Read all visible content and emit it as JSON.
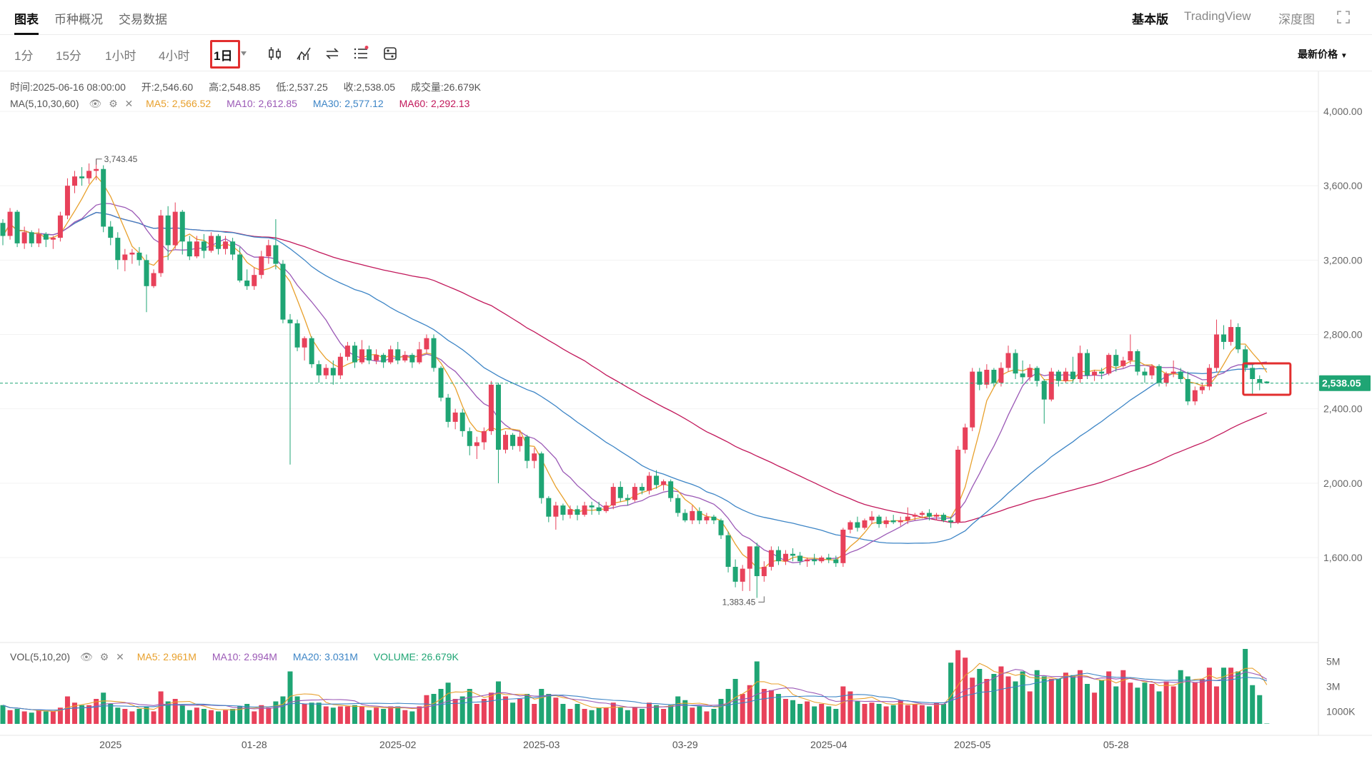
{
  "nav": {
    "tabs": [
      {
        "label": "图表",
        "active": true
      },
      {
        "label": "币种概况",
        "active": false
      },
      {
        "label": "交易数据",
        "active": false
      }
    ],
    "right_tabs": [
      {
        "label": "基本版",
        "active": true
      },
      {
        "label": "TradingView",
        "active": false
      },
      {
        "label": "深度图",
        "active": false
      }
    ],
    "expand_icon": "fullscreen-icon"
  },
  "toolbar": {
    "timeframes": [
      {
        "label": "1分",
        "active": false
      },
      {
        "label": "15分",
        "active": false
      },
      {
        "label": "1小时",
        "active": false
      },
      {
        "label": "4小时",
        "active": false
      },
      {
        "label": "1日",
        "active": true
      }
    ],
    "tools": [
      "candle-type-icon",
      "indicator-icon",
      "swap-icon",
      "list-settings-icon",
      "chart-settings-icon"
    ],
    "price_select": "最新价格"
  },
  "ohlc": {
    "time_label": "时间:",
    "time": "2025-06-16 08:00:00",
    "open_label": "开:",
    "open": "2,546.60",
    "high_label": "高:",
    "high": "2,548.85",
    "low_label": "低:",
    "low": "2,537.25",
    "close_label": "收:",
    "close": "2,538.05",
    "vol_label": "成交量:",
    "vol": "26.679K"
  },
  "ma_legend": {
    "name": "MA(5,10,30,60)",
    "ma5": "MA5: 2,566.52",
    "ma10": "MA10: 2,612.85",
    "ma30": "MA30: 2,577.12",
    "ma60": "MA60: 2,292.13"
  },
  "vol_legend": {
    "name": "VOL(5,10,20)",
    "ma5": "MA5: 2.961M",
    "ma10": "MA10: 2.994M",
    "ma20": "MA20: 3.031M",
    "volume": "VOLUME: 26.679K"
  },
  "colors": {
    "up": "#e8415a",
    "down": "#1fa574",
    "ma5": "#e8a02c",
    "ma10": "#9b59b6",
    "ma30": "#3d85c6",
    "ma60": "#c2185b",
    "current_price": "#1fa574",
    "highlight": "#e22e2e"
  },
  "chart_data": {
    "type": "candlestick",
    "y_axis": {
      "labels": [
        "4,000.00",
        "3,600.00",
        "3,200.00",
        "2,800.00",
        "2,400.00",
        "2,000.00",
        "1,600.00"
      ],
      "values": [
        4000,
        3600,
        3200,
        2800,
        2400,
        2000,
        1600
      ]
    },
    "ylim": [
      1200,
      4200
    ],
    "x_axis": {
      "labels": [
        "2025",
        "01-28",
        "2025-02",
        "2025-03",
        "03-29",
        "2025-04",
        "2025-05",
        "05-28"
      ],
      "positions_index": [
        15,
        35,
        55,
        75,
        95,
        115,
        135,
        155
      ]
    },
    "current_price": {
      "label": "2,538.05",
      "value": 2538.05
    },
    "annotations": [
      {
        "label": "3,743.45",
        "value": 3743.45,
        "index": 13
      },
      {
        "label": "1,383.45",
        "value": 1383.45,
        "index": 106
      }
    ],
    "vol_axis": {
      "labels": [
        "5M",
        "3M",
        "1000K"
      ],
      "values": [
        5000000,
        3000000,
        1000000
      ]
    },
    "candles": [
      [
        3400,
        3420,
        3280,
        3330
      ],
      [
        3330,
        3480,
        3310,
        3460
      ],
      [
        3460,
        3470,
        3270,
        3290
      ],
      [
        3290,
        3380,
        3260,
        3350
      ],
      [
        3350,
        3360,
        3270,
        3290
      ],
      [
        3290,
        3370,
        3270,
        3340
      ],
      [
        3340,
        3350,
        3270,
        3310
      ],
      [
        3310,
        3330,
        3260,
        3320
      ],
      [
        3320,
        3460,
        3300,
        3440
      ],
      [
        3440,
        3640,
        3420,
        3600
      ],
      [
        3600,
        3680,
        3560,
        3650
      ],
      [
        3650,
        3700,
        3600,
        3640
      ],
      [
        3640,
        3720,
        3610,
        3680
      ],
      [
        3680,
        3743,
        3630,
        3690
      ],
      [
        3690,
        3710,
        3350,
        3380
      ],
      [
        3380,
        3410,
        3280,
        3320
      ],
      [
        3320,
        3350,
        3150,
        3200
      ],
      [
        3200,
        3260,
        3140,
        3230
      ],
      [
        3230,
        3260,
        3180,
        3240
      ],
      [
        3240,
        3270,
        3170,
        3200
      ],
      [
        3200,
        3230,
        2920,
        3060
      ],
      [
        3060,
        3150,
        3050,
        3130
      ],
      [
        3130,
        3470,
        3110,
        3440
      ],
      [
        3440,
        3490,
        3200,
        3280
      ],
      [
        3280,
        3510,
        3260,
        3460
      ],
      [
        3460,
        3470,
        3230,
        3300
      ],
      [
        3300,
        3330,
        3200,
        3220
      ],
      [
        3220,
        3330,
        3210,
        3300
      ],
      [
        3300,
        3340,
        3210,
        3250
      ],
      [
        3250,
        3350,
        3240,
        3330
      ],
      [
        3330,
        3340,
        3230,
        3260
      ],
      [
        3260,
        3330,
        3230,
        3300
      ],
      [
        3300,
        3320,
        3200,
        3230
      ],
      [
        3230,
        3270,
        3080,
        3090
      ],
      [
        3090,
        3150,
        3040,
        3060
      ],
      [
        3060,
        3160,
        3040,
        3120
      ],
      [
        3120,
        3250,
        3100,
        3220
      ],
      [
        3220,
        3310,
        3180,
        3280
      ],
      [
        3280,
        3420,
        3150,
        3180
      ],
      [
        3180,
        3200,
        2860,
        2880
      ],
      [
        2880,
        2910,
        2100,
        2860
      ],
      [
        2860,
        2880,
        2710,
        2730
      ],
      [
        2730,
        2790,
        2660,
        2780
      ],
      [
        2780,
        2790,
        2620,
        2640
      ],
      [
        2640,
        2660,
        2540,
        2580
      ],
      [
        2580,
        2640,
        2560,
        2620
      ],
      [
        2620,
        2660,
        2530,
        2580
      ],
      [
        2580,
        2700,
        2560,
        2680
      ],
      [
        2680,
        2760,
        2660,
        2740
      ],
      [
        2740,
        2760,
        2620,
        2650
      ],
      [
        2650,
        2770,
        2640,
        2720
      ],
      [
        2720,
        2740,
        2640,
        2660
      ],
      [
        2660,
        2720,
        2640,
        2690
      ],
      [
        2690,
        2700,
        2620,
        2650
      ],
      [
        2650,
        2740,
        2640,
        2720
      ],
      [
        2720,
        2760,
        2640,
        2660
      ],
      [
        2660,
        2710,
        2650,
        2690
      ],
      [
        2690,
        2700,
        2620,
        2650
      ],
      [
        2650,
        2760,
        2640,
        2720
      ],
      [
        2720,
        2800,
        2700,
        2780
      ],
      [
        2780,
        2800,
        2600,
        2620
      ],
      [
        2620,
        2630,
        2440,
        2460
      ],
      [
        2460,
        2480,
        2300,
        2330
      ],
      [
        2330,
        2400,
        2290,
        2380
      ],
      [
        2380,
        2400,
        2250,
        2280
      ],
      [
        2280,
        2300,
        2150,
        2200
      ],
      [
        2200,
        2250,
        2130,
        2220
      ],
      [
        2220,
        2300,
        2180,
        2280
      ],
      [
        2280,
        2550,
        2260,
        2530
      ],
      [
        2530,
        2540,
        2000,
        2180
      ],
      [
        2180,
        2280,
        2160,
        2260
      ],
      [
        2260,
        2270,
        2180,
        2200
      ],
      [
        2200,
        2280,
        2170,
        2250
      ],
      [
        2250,
        2260,
        2080,
        2120
      ],
      [
        2120,
        2190,
        2080,
        2160
      ],
      [
        2160,
        2170,
        1890,
        1920
      ],
      [
        1920,
        1930,
        1790,
        1820
      ],
      [
        1820,
        1900,
        1750,
        1880
      ],
      [
        1880,
        1890,
        1800,
        1830
      ],
      [
        1830,
        1880,
        1810,
        1860
      ],
      [
        1860,
        1880,
        1800,
        1830
      ],
      [
        1830,
        1900,
        1820,
        1880
      ],
      [
        1880,
        1900,
        1830,
        1870
      ],
      [
        1870,
        1900,
        1830,
        1850
      ],
      [
        1850,
        1900,
        1840,
        1880
      ],
      [
        1880,
        2000,
        1860,
        1980
      ],
      [
        1980,
        2010,
        1900,
        1920
      ],
      [
        1920,
        1940,
        1880,
        1910
      ],
      [
        1910,
        2000,
        1900,
        1980
      ],
      [
        1980,
        2000,
        1940,
        1960
      ],
      [
        1960,
        2060,
        1940,
        2040
      ],
      [
        2040,
        2070,
        1970,
        1990
      ],
      [
        1990,
        2020,
        1960,
        2010
      ],
      [
        2010,
        2020,
        1900,
        1920
      ],
      [
        1920,
        1940,
        1820,
        1840
      ],
      [
        1840,
        1860,
        1790,
        1800
      ],
      [
        1800,
        1880,
        1780,
        1850
      ],
      [
        1850,
        1870,
        1780,
        1800
      ],
      [
        1800,
        1840,
        1780,
        1820
      ],
      [
        1820,
        1830,
        1780,
        1800
      ],
      [
        1800,
        1810,
        1700,
        1720
      ],
      [
        1720,
        1740,
        1520,
        1550
      ],
      [
        1550,
        1590,
        1440,
        1470
      ],
      [
        1470,
        1560,
        1420,
        1540
      ],
      [
        1540,
        1660,
        1420,
        1660
      ],
      [
        1660,
        1680,
        1383,
        1500
      ],
      [
        1500,
        1580,
        1470,
        1550
      ],
      [
        1550,
        1660,
        1530,
        1640
      ],
      [
        1640,
        1660,
        1560,
        1580
      ],
      [
        1580,
        1640,
        1560,
        1620
      ],
      [
        1620,
        1650,
        1580,
        1610
      ],
      [
        1610,
        1630,
        1560,
        1580
      ],
      [
        1580,
        1600,
        1550,
        1590
      ],
      [
        1590,
        1620,
        1560,
        1580
      ],
      [
        1580,
        1610,
        1570,
        1600
      ],
      [
        1600,
        1620,
        1570,
        1590
      ],
      [
        1590,
        1610,
        1550,
        1570
      ],
      [
        1570,
        1760,
        1550,
        1750
      ],
      [
        1750,
        1800,
        1730,
        1790
      ],
      [
        1790,
        1820,
        1740,
        1760
      ],
      [
        1760,
        1810,
        1750,
        1800
      ],
      [
        1800,
        1850,
        1780,
        1820
      ],
      [
        1820,
        1830,
        1760,
        1780
      ],
      [
        1780,
        1820,
        1760,
        1800
      ],
      [
        1800,
        1830,
        1780,
        1790
      ],
      [
        1790,
        1820,
        1770,
        1800
      ],
      [
        1800,
        1870,
        1780,
        1820
      ],
      [
        1820,
        1840,
        1800,
        1830
      ],
      [
        1830,
        1850,
        1810,
        1840
      ],
      [
        1840,
        1860,
        1800,
        1820
      ],
      [
        1820,
        1840,
        1800,
        1830
      ],
      [
        1830,
        1840,
        1790,
        1800
      ],
      [
        1800,
        1820,
        1760,
        1790
      ],
      [
        1790,
        2200,
        1780,
        2180
      ],
      [
        2180,
        2320,
        2160,
        2300
      ],
      [
        2300,
        2620,
        2280,
        2600
      ],
      [
        2600,
        2620,
        2500,
        2530
      ],
      [
        2530,
        2640,
        2510,
        2610
      ],
      [
        2610,
        2620,
        2520,
        2540
      ],
      [
        2540,
        2650,
        2520,
        2620
      ],
      [
        2620,
        2740,
        2600,
        2700
      ],
      [
        2700,
        2720,
        2560,
        2590
      ],
      [
        2590,
        2660,
        2540,
        2570
      ],
      [
        2570,
        2640,
        2550,
        2620
      ],
      [
        2620,
        2630,
        2520,
        2550
      ],
      [
        2550,
        2560,
        2320,
        2450
      ],
      [
        2450,
        2620,
        2440,
        2600
      ],
      [
        2600,
        2610,
        2520,
        2550
      ],
      [
        2550,
        2620,
        2540,
        2600
      ],
      [
        2600,
        2680,
        2540,
        2560
      ],
      [
        2560,
        2740,
        2540,
        2700
      ],
      [
        2700,
        2720,
        2560,
        2580
      ],
      [
        2580,
        2610,
        2550,
        2600
      ],
      [
        2600,
        2620,
        2560,
        2590
      ],
      [
        2590,
        2700,
        2580,
        2690
      ],
      [
        2690,
        2720,
        2600,
        2630
      ],
      [
        2630,
        2680,
        2620,
        2660
      ],
      [
        2660,
        2800,
        2640,
        2710
      ],
      [
        2710,
        2720,
        2580,
        2600
      ],
      [
        2600,
        2620,
        2540,
        2580
      ],
      [
        2580,
        2640,
        2560,
        2630
      ],
      [
        2630,
        2640,
        2520,
        2540
      ],
      [
        2540,
        2600,
        2520,
        2590
      ],
      [
        2590,
        2660,
        2570,
        2600
      ],
      [
        2600,
        2620,
        2540,
        2560
      ],
      [
        2560,
        2600,
        2420,
        2440
      ],
      [
        2440,
        2520,
        2420,
        2500
      ],
      [
        2500,
        2540,
        2480,
        2520
      ],
      [
        2520,
        2640,
        2500,
        2620
      ],
      [
        2620,
        2880,
        2600,
        2800
      ],
      [
        2800,
        2850,
        2720,
        2760
      ],
      [
        2760,
        2880,
        2740,
        2840
      ],
      [
        2840,
        2860,
        2700,
        2720
      ],
      [
        2720,
        2740,
        2600,
        2620
      ],
      [
        2620,
        2640,
        2480,
        2560
      ],
      [
        2560,
        2580,
        2500,
        2540
      ],
      [
        2546.6,
        2548.85,
        2537.25,
        2538.05
      ]
    ],
    "volumes": [
      1.5,
      1.1,
      1.2,
      1.0,
      0.9,
      1.1,
      1.0,
      1.0,
      1.3,
      2.2,
      1.7,
      1.5,
      1.5,
      2.0,
      2.5,
      1.6,
      1.3,
      1.2,
      1.0,
      1.2,
      1.4,
      1.0,
      2.6,
      1.8,
      2.0,
      1.5,
      1.1,
      1.3,
      1.2,
      1.1,
      1.0,
      1.1,
      1.2,
      1.4,
      1.6,
      1.0,
      1.5,
      1.3,
      1.8,
      2.2,
      4.2,
      2.2,
      1.6,
      1.7,
      1.7,
      1.4,
      1.3,
      1.4,
      1.4,
      1.5,
      1.4,
      1.1,
      1.3,
      1.2,
      1.4,
      1.4,
      1.1,
      1.0,
      1.4,
      2.3,
      2.4,
      2.8,
      3.3,
      2.0,
      2.2,
      2.8,
      1.6,
      2.0,
      2.5,
      3.4,
      2.2,
      1.7,
      2.0,
      2.4,
      1.6,
      2.8,
      2.4,
      2.1,
      1.6,
      1.2,
      1.6,
      1.2,
      1.1,
      1.3,
      1.3,
      1.7,
      1.3,
      1.1,
      1.3,
      1.2,
      1.7,
      1.5,
      1.2,
      1.5,
      2.2,
      1.9,
      1.3,
      1.4,
      1.0,
      1.2,
      2.0,
      2.8,
      3.6,
      2.4,
      3.1,
      5.0,
      2.8,
      2.7,
      2.4,
      2.0,
      1.9,
      1.6,
      1.8,
      1.4,
      1.6,
      1.4,
      1.2,
      3.0,
      2.6,
      1.8,
      1.6,
      1.7,
      1.6,
      1.4,
      1.5,
      1.9,
      1.5,
      1.6,
      1.5,
      1.4,
      1.7,
      1.6,
      4.9,
      5.9,
      5.3,
      3.7,
      4.4,
      3.6,
      4.0,
      4.6,
      3.8,
      3.4,
      4.2,
      2.6,
      4.3,
      3.8,
      3.6,
      3.6,
      4.1,
      3.9,
      4.3,
      3.2,
      2.5,
      3.5,
      4.2,
      3.0,
      4.3,
      3.3,
      2.9,
      3.3,
      3.2,
      2.6,
      3.4,
      3.0,
      4.3,
      3.8,
      3.3,
      3.6,
      4.5,
      3.0,
      4.5,
      4.5,
      4.2,
      6.0,
      3.1,
      2.3,
      0.03
    ]
  }
}
